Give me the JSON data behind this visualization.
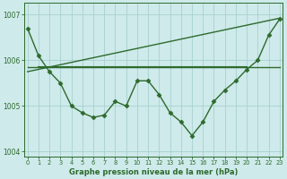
{
  "line_main": {
    "x": [
      0,
      1,
      2,
      3,
      4,
      5,
      6,
      7,
      8,
      9,
      10,
      11,
      12,
      13,
      14,
      15,
      16,
      17,
      18,
      19,
      20,
      21,
      22,
      23
    ],
    "y": [
      1006.7,
      1006.1,
      1005.75,
      1005.5,
      1005.0,
      1004.85,
      1004.75,
      1004.8,
      1005.1,
      1005.0,
      1005.55,
      1005.55,
      1005.25,
      1004.85,
      1004.65,
      1004.35,
      1004.65,
      1005.1,
      1005.35,
      1005.55,
      1005.8,
      1006.0,
      1006.55,
      1006.9
    ],
    "color": "#2d6a2d",
    "marker": "D",
    "markersize": 2.5,
    "linewidth": 1.0
  },
  "line_diag": {
    "x": [
      0,
      23
    ],
    "y": [
      1005.75,
      1006.92
    ],
    "color": "#2d6a2d",
    "linewidth": 1.0
  },
  "line_horiz": {
    "x": [
      0,
      23
    ],
    "y": [
      1005.85,
      1005.85
    ],
    "color": "#2d6a2d",
    "linewidth": 1.0
  },
  "line_flat2": {
    "x": [
      1,
      20
    ],
    "y": [
      1005.85,
      1005.85
    ],
    "color": "#2d6a2d",
    "linewidth": 1.5
  },
  "ylim": [
    1003.9,
    1007.25
  ],
  "xlim": [
    -0.3,
    23.3
  ],
  "yticks": [
    1004,
    1005,
    1006,
    1007
  ],
  "xticks": [
    0,
    1,
    2,
    3,
    4,
    5,
    6,
    7,
    8,
    9,
    10,
    11,
    12,
    13,
    14,
    15,
    16,
    17,
    18,
    19,
    20,
    21,
    22,
    23
  ],
  "xlabel": "Graphe pression niveau de la mer (hPa)",
  "bg_color": "#ceeaea",
  "grid_color": "#a8d0d0",
  "text_color": "#2d6a2d",
  "axis_color": "#2d6a2d",
  "tick_label_color": "#2d6a2d"
}
